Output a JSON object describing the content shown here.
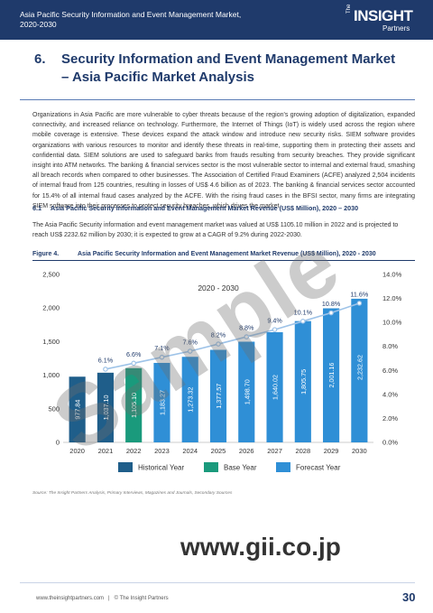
{
  "header": {
    "title": "Asia Pacific Security Information and Event Management Market, 2020-2030",
    "logo": {
      "the": "The",
      "name": "INSIGHT",
      "sub": "Partners"
    }
  },
  "section": {
    "number": "6.",
    "title": "Security Information and Event Management Market – Asia Pacific Market Analysis"
  },
  "body_paragraph": "Organizations in Asia Pacific are more vulnerable to cyber threats because of the region's growing adoption of digitalization, expanded connectivity, and increased reliance on technology. Furthermore, the Internet of Things (IoT) is widely used across the region where mobile coverage is extensive. These devices expand the attack window and introduce new security risks. SIEM software provides organizations with various resources to monitor and identify these threats in real-time, supporting them in protecting their assets and confidential data. SIEM solutions are used to safeguard banks from frauds resulting from security breaches. They provide significant insight into ATM networks. The banking & financial services sector is the most vulnerable sector to internal and external fraud, smashing all breach records when compared to other businesses. The Association of Certified Fraud Examiners (ACFE) analyzed 2,504 incidents of internal fraud from 125 countries, resulting in losses of US$ 4.6 billion as of 2023. The banking & financial services sector accounted for 15.4% of all internal fraud cases analyzed by the ACFE. With the rising fraud cases in the BFSI sector, many firms are integrating SIEM software into their processes to protect security breaches, which drives the market.",
  "subsection": {
    "number": "6.1",
    "title": "Asia Pacific Security Information and Event Management Market Revenue (US$ Million), 2020 – 2030"
  },
  "summary": "The Asia Pacific Security information and event management market was valued at US$ 1105.10 million in 2022 and is projected to reach US$ 2232.62 million by 2030; it is expected to grow at a CAGR of 9.2% during 2022-2030.",
  "figure": {
    "number": "Figure 4.",
    "title": "Asia Pacific Security Information and Event Management Market Revenue (US$ Million), 2020 - 2030"
  },
  "chart_data": {
    "type": "bar",
    "title": "2020 - 2030",
    "categories": [
      "2020",
      "2021",
      "2022",
      "2023",
      "2024",
      "2025",
      "2026",
      "2027",
      "2028",
      "2029",
      "2030"
    ],
    "values": [
      977.84,
      1037.1,
      1105.1,
      1183.27,
      1273.32,
      1377.57,
      1498.7,
      1640.02,
      1805.75,
      2001.16,
      2232.62
    ],
    "value_labels": [
      "977.84",
      "1,037.10",
      "1,105.10",
      "1,183.27",
      "1,273.32",
      "1,377.57",
      "1,498.70",
      "1,640.02",
      "1,805.75",
      "2,001.16",
      "2,232.62"
    ],
    "bar_types": [
      "historical",
      "historical",
      "base",
      "forecast",
      "forecast",
      "forecast",
      "forecast",
      "forecast",
      "forecast",
      "forecast",
      "forecast"
    ],
    "growth": {
      "start_index": 1,
      "values": [
        6.1,
        6.6,
        7.1,
        7.6,
        8.2,
        8.8,
        9.4,
        10.1,
        10.8,
        11.6
      ],
      "labels": [
        "6.1%",
        "6.6%",
        "7.1%",
        "7.6%",
        "8.2%",
        "8.8%",
        "9.4%",
        "10.1%",
        "10.8%",
        "11.6%"
      ]
    },
    "y_left": {
      "ticks": [
        "0",
        "500",
        "1,000",
        "1,500",
        "2,000",
        "2,500"
      ],
      "range": [
        0,
        2500
      ]
    },
    "y_right": {
      "ticks": [
        "0.0%",
        "2.0%",
        "4.0%",
        "6.0%",
        "8.0%",
        "10.0%",
        "12.0%",
        "14.0%"
      ],
      "range": [
        0,
        14
      ]
    },
    "legend": {
      "position": "bottom",
      "items": [
        {
          "key": "historical",
          "label": "Historical Year",
          "color": "#1f5e8a"
        },
        {
          "key": "base",
          "label": "Base Year",
          "color": "#1a9a7c"
        },
        {
          "key": "forecast",
          "label": "Forecast Year",
          "color": "#2f8fd6"
        }
      ]
    },
    "line_color": "#9ec3e8",
    "grid": false
  },
  "source": "Source: The Insight Partners Analysis, Primary Interviews, Magazines and Journals, Secondary Sources",
  "watermark": "Sample",
  "gii": "www.gii.co.jp",
  "footer": {
    "website": "www.theinsightpartners.com",
    "separator": "|",
    "copyright": "© The Insight Partners"
  },
  "page_number": "30",
  "colors": {
    "header": "#1f3a6b",
    "heading": "#1f3a6b"
  }
}
